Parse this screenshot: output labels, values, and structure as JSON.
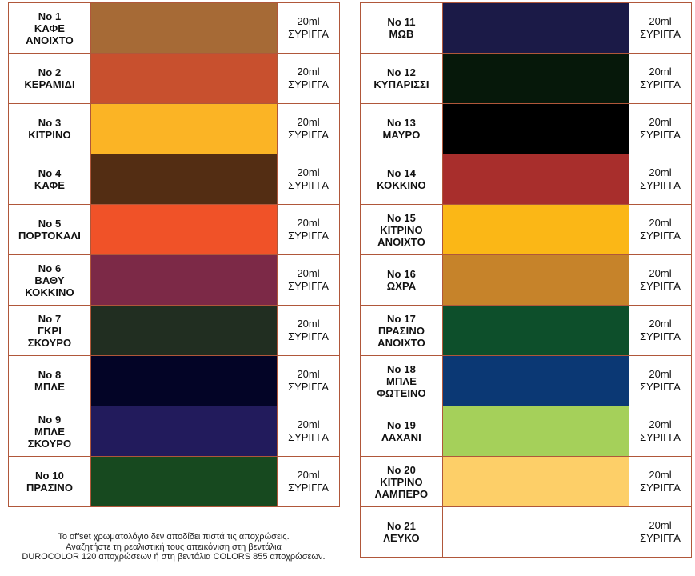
{
  "left_column": [
    {
      "lines": [
        "No 1",
        "ΚΑΦΕ",
        "ΑΝΟΙΧΤΟ"
      ],
      "color": "#a66a36",
      "size": "20ml",
      "unit": "ΣΥΡΙΓΓΑ"
    },
    {
      "lines": [
        "No 2",
        "ΚΕΡΑΜΙΔΙ"
      ],
      "color": "#c8502e",
      "size": "20ml",
      "unit": "ΣΥΡΙΓΓΑ"
    },
    {
      "lines": [
        "No 3",
        "ΚΙΤΡΙΝΟ"
      ],
      "color": "#fbb425",
      "size": "20ml",
      "unit": "ΣΥΡΙΓΓΑ"
    },
    {
      "lines": [
        "No 4",
        "ΚΑΦΕ"
      ],
      "color": "#532d13",
      "size": "20ml",
      "unit": "ΣΥΡΙΓΓΑ"
    },
    {
      "lines": [
        "No 5",
        "ΠΟΡΤΟΚΑΛΙ"
      ],
      "color": "#f05228",
      "size": "20ml",
      "unit": "ΣΥΡΙΓΓΑ"
    },
    {
      "lines": [
        "No 6",
        "ΒΑΘΥ",
        "ΚΟΚΚΙΝΟ"
      ],
      "color": "#7c2947",
      "size": "20ml",
      "unit": "ΣΥΡΙΓΓΑ"
    },
    {
      "lines": [
        "No 7",
        "ΓΚΡΙ",
        "ΣΚΟΥΡΟ"
      ],
      "color": "#212e21",
      "size": "20ml",
      "unit": "ΣΥΡΙΓΓΑ"
    },
    {
      "lines": [
        "No 8",
        "ΜΠΛΕ"
      ],
      "color": "#030426",
      "size": "20ml",
      "unit": "ΣΥΡΙΓΓΑ"
    },
    {
      "lines": [
        "No 9",
        "ΜΠΛΕ",
        "ΣΚΟΥΡΟ"
      ],
      "color": "#221b5c",
      "size": "20ml",
      "unit": "ΣΥΡΙΓΓΑ"
    },
    {
      "lines": [
        "No 10",
        "ΠΡΑΣΙΝΟ"
      ],
      "color": "#17491f",
      "size": "20ml",
      "unit": "ΣΥΡΙΓΓΑ"
    }
  ],
  "right_column": [
    {
      "lines": [
        "No 11",
        "ΜΩΒ"
      ],
      "color": "#1b1a47",
      "size": "20ml",
      "unit": "ΣΥΡΙΓΓΑ"
    },
    {
      "lines": [
        "No 12",
        "ΚΥΠΑΡΙΣΣΙ"
      ],
      "color": "#06180a",
      "size": "20ml",
      "unit": "ΣΥΡΙΓΓΑ"
    },
    {
      "lines": [
        "No 13",
        "ΜΑΥΡΟ"
      ],
      "color": "#000000",
      "size": "20ml",
      "unit": "ΣΥΡΙΓΓΑ"
    },
    {
      "lines": [
        "No 14",
        "ΚΟΚΚΙΝΟ"
      ],
      "color": "#a82e2c",
      "size": "20ml",
      "unit": "ΣΥΡΙΓΓΑ"
    },
    {
      "lines": [
        "No 15",
        "ΚΙΤΡΙΝΟ",
        "ΑΝΟΙΧΤΟ"
      ],
      "color": "#fbb716",
      "size": "20ml",
      "unit": "ΣΥΡΙΓΓΑ"
    },
    {
      "lines": [
        "No 16",
        "ΩΧΡΑ"
      ],
      "color": "#c6832a",
      "size": "20ml",
      "unit": "ΣΥΡΙΓΓΑ"
    },
    {
      "lines": [
        "No 17",
        "ΠΡΑΣΙΝΟ",
        "ΑΝΟΙΧΤΟ"
      ],
      "color": "#0d4f2b",
      "size": "20ml",
      "unit": "ΣΥΡΙΓΓΑ"
    },
    {
      "lines": [
        "No 18",
        "ΜΠΛΕ",
        "ΦΩΤΕΙΝΟ"
      ],
      "color": "#0b3874",
      "size": "20ml",
      "unit": "ΣΥΡΙΓΓΑ"
    },
    {
      "lines": [
        "No 19",
        "ΛΑΧΑΝΙ"
      ],
      "color": "#a5d05a",
      "size": "20ml",
      "unit": "ΣΥΡΙΓΓΑ"
    },
    {
      "lines": [
        "No 20",
        "ΚΙΤΡΙΝΟ",
        "ΛΑΜΠΕΡΟ"
      ],
      "color": "#fdcf68",
      "size": "20ml",
      "unit": "ΣΥΡΙΓΓΑ"
    },
    {
      "lines": [
        "No 21",
        "ΛΕΥΚΟ"
      ],
      "color": "#ffffff",
      "size": "20ml",
      "unit": "ΣΥΡΙΓΓΑ"
    }
  ],
  "footer_note": [
    "Το offset χρωματολόγιο δεν αποδίδει πιστά τις αποχρώσεις.",
    "Αναζητήστε τη ρεαλιστική τους απεικόνιση στη βεντάλια",
    "DUROCOLOR 120 αποχρώσεων ή στη βεντάλια COLORS 855 αποχρώσεων."
  ]
}
